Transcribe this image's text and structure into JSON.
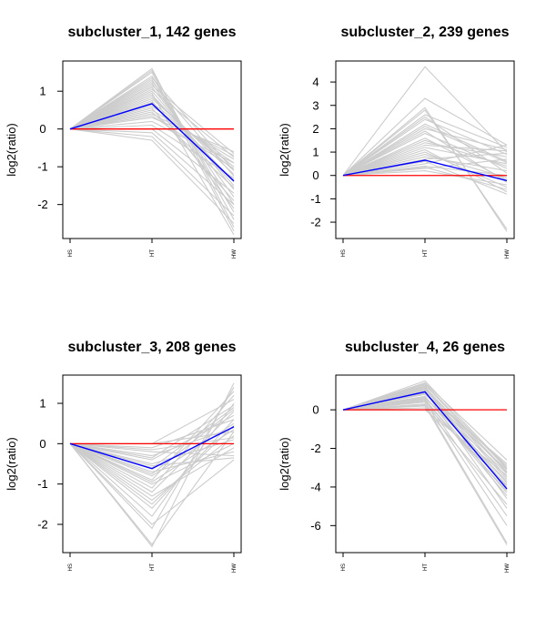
{
  "colors": {
    "profile": "#cccccc",
    "mean": "#0000ff",
    "baseline": "#ff0000",
    "axis": "#000000"
  },
  "chart_data": [
    {
      "type": "line",
      "title": "subcluster_1, 142 genes",
      "ylabel": "log2(ratio)",
      "categories": [
        "HS",
        "HT",
        "HW"
      ],
      "yticks": [
        1,
        0,
        -1,
        -2
      ],
      "ylim": [
        -2.9,
        1.8
      ],
      "series": [
        {
          "role": "mean",
          "values": [
            0,
            0.67,
            -1.38
          ]
        },
        {
          "role": "baseline",
          "values": [
            0,
            0,
            0
          ]
        },
        {
          "role": "profiles",
          "profiles": [
            [
              0,
              1.6,
              -2.6
            ],
            [
              0,
              1.55,
              -2.4
            ],
            [
              0,
              1.5,
              -2.7
            ],
            [
              0,
              1.4,
              -2.2
            ],
            [
              0,
              1.3,
              -2.0
            ],
            [
              0,
              1.2,
              -1.8
            ],
            [
              0,
              1.1,
              -1.6
            ],
            [
              0,
              1.0,
              -1.5
            ],
            [
              0,
              0.9,
              -1.4
            ],
            [
              0,
              0.85,
              -1.2
            ],
            [
              0,
              0.8,
              -1.1
            ],
            [
              0,
              0.7,
              -1.0
            ],
            [
              0,
              0.6,
              -0.9
            ],
            [
              0,
              0.5,
              -0.8
            ],
            [
              0,
              0.4,
              -0.7
            ],
            [
              0,
              0.3,
              -0.6
            ],
            [
              0,
              0.2,
              -0.9
            ],
            [
              0,
              0.1,
              -1.3
            ],
            [
              0,
              0.0,
              -1.7
            ],
            [
              0,
              -0.1,
              -2.0
            ],
            [
              0,
              -0.2,
              -2.3
            ],
            [
              0,
              -0.3,
              -2.5
            ],
            [
              0,
              1.35,
              -1.1
            ],
            [
              0,
              1.15,
              -0.65
            ],
            [
              0,
              0.95,
              -2.8
            ],
            [
              0,
              0.75,
              -2.1
            ],
            [
              0,
              0.55,
              -1.9
            ],
            [
              0,
              0.45,
              -1.55
            ],
            [
              0,
              1.25,
              -1.25
            ],
            [
              0,
              1.05,
              -0.75
            ],
            [
              0,
              0.65,
              -1.35
            ],
            [
              0,
              0.35,
              -1.05
            ]
          ]
        }
      ]
    },
    {
      "type": "line",
      "title": "subcluster_2, 239 genes",
      "ylabel": "log2(ratio)",
      "categories": [
        "HS",
        "HT",
        "HW"
      ],
      "yticks": [
        4,
        3,
        2,
        1,
        0,
        -1,
        -2
      ],
      "ylim": [
        -2.7,
        4.9
      ],
      "series": [
        {
          "role": "mean",
          "values": [
            0,
            0.65,
            -0.22
          ]
        },
        {
          "role": "baseline",
          "values": [
            0,
            0,
            0
          ]
        },
        {
          "role": "profiles",
          "profiles": [
            [
              0,
              4.65,
              1.0
            ],
            [
              0,
              3.3,
              1.3
            ],
            [
              0,
              2.9,
              -2.4
            ],
            [
              0,
              2.8,
              -2.3
            ],
            [
              0,
              2.6,
              1.2
            ],
            [
              0,
              2.4,
              0.9
            ],
            [
              0,
              2.2,
              0.6
            ],
            [
              0,
              2.0,
              1.1
            ],
            [
              0,
              1.8,
              0.3
            ],
            [
              0,
              1.6,
              -0.2
            ],
            [
              0,
              1.4,
              0.8
            ],
            [
              0,
              1.2,
              0.5
            ],
            [
              0,
              1.0,
              -0.5
            ],
            [
              0,
              0.8,
              0.2
            ],
            [
              0,
              0.6,
              -0.8
            ],
            [
              0,
              0.4,
              0.0
            ],
            [
              0,
              0.3,
              0.7
            ],
            [
              0,
              0.2,
              -0.4
            ],
            [
              0,
              0.5,
              1.3
            ],
            [
              0,
              0.9,
              -0.1
            ],
            [
              0,
              1.5,
              0.4
            ],
            [
              0,
              1.9,
              -0.3
            ],
            [
              0,
              2.5,
              0.1
            ],
            [
              0,
              0.7,
              0.95
            ],
            [
              0,
              1.1,
              -0.7
            ],
            [
              0,
              1.3,
              1.05
            ],
            [
              0,
              0.35,
              -0.6
            ],
            [
              0,
              2.1,
              0.55
            ]
          ]
        }
      ]
    },
    {
      "type": "line",
      "title": "subcluster_3, 208 genes",
      "ylabel": "log2(ratio)",
      "categories": [
        "HS",
        "HT",
        "HW"
      ],
      "yticks": [
        1,
        0,
        -1,
        -2
      ],
      "ylim": [
        -2.7,
        1.7
      ],
      "series": [
        {
          "role": "mean",
          "values": [
            0,
            -0.62,
            0.42
          ]
        },
        {
          "role": "baseline",
          "values": [
            0,
            0,
            0
          ]
        },
        {
          "role": "profiles",
          "profiles": [
            [
              0,
              -2.55,
              1.5
            ],
            [
              0,
              -2.5,
              0.3
            ],
            [
              0,
              -2.1,
              1.4
            ],
            [
              0,
              -2.0,
              -0.4
            ],
            [
              0,
              -1.8,
              1.0
            ],
            [
              0,
              -1.6,
              0.6
            ],
            [
              0,
              -1.4,
              0.2
            ],
            [
              0,
              -1.2,
              0.8
            ],
            [
              0,
              -1.0,
              0.0
            ],
            [
              0,
              -0.9,
              1.3
            ],
            [
              0,
              -0.8,
              0.5
            ],
            [
              0,
              -0.7,
              -0.2
            ],
            [
              0,
              -0.6,
              0.9
            ],
            [
              0,
              -0.5,
              0.1
            ],
            [
              0,
              -0.4,
              0.7
            ],
            [
              0,
              -0.3,
              0.4
            ],
            [
              0,
              -0.2,
              -0.3
            ],
            [
              0,
              -0.1,
              0.6
            ],
            [
              0,
              0.0,
              0.3
            ],
            [
              0,
              0.0,
              1.1
            ],
            [
              0,
              -1.3,
              -0.1
            ],
            [
              0,
              -1.1,
              1.2
            ],
            [
              0,
              -0.95,
              0.35
            ],
            [
              0,
              -0.75,
              0.85
            ],
            [
              0,
              -0.55,
              -0.35
            ],
            [
              0,
              -0.35,
              0.95
            ],
            [
              0,
              -0.15,
              0.15
            ],
            [
              0,
              -1.5,
              0.45
            ]
          ]
        }
      ]
    },
    {
      "type": "line",
      "title": "subcluster_4, 26 genes",
      "ylabel": "log2(ratio)",
      "categories": [
        "HS",
        "HT",
        "HW"
      ],
      "yticks": [
        0,
        -2,
        -4,
        -6
      ],
      "ylim": [
        -7.4,
        1.8
      ],
      "series": [
        {
          "role": "mean",
          "values": [
            0,
            0.93,
            -4.1
          ]
        },
        {
          "role": "baseline",
          "values": [
            0,
            0,
            0
          ]
        },
        {
          "role": "profiles",
          "profiles": [
            [
              0,
              1.5,
              -3.0
            ],
            [
              0,
              1.4,
              -2.6
            ],
            [
              0,
              1.3,
              -3.2
            ],
            [
              0,
              1.2,
              -3.5
            ],
            [
              0,
              1.1,
              -4.0
            ],
            [
              0,
              1.0,
              -2.9
            ],
            [
              0,
              0.9,
              -3.8
            ],
            [
              0,
              0.8,
              -3.1
            ],
            [
              0,
              0.7,
              -4.3
            ],
            [
              0,
              0.6,
              -3.3
            ],
            [
              0,
              0.5,
              -5.5
            ],
            [
              0,
              0.4,
              -6.0
            ],
            [
              0,
              0.3,
              -6.9
            ],
            [
              0,
              0.2,
              -7.0
            ],
            [
              0,
              0.1,
              -4.9
            ],
            [
              0,
              0.0,
              -3.4
            ],
            [
              0,
              1.25,
              -4.6
            ],
            [
              0,
              1.05,
              -3.6
            ],
            [
              0,
              0.85,
              -2.8
            ],
            [
              0,
              0.65,
              -3.7
            ],
            [
              0,
              0.45,
              -4.2
            ],
            [
              0,
              0.25,
              -3.9
            ],
            [
              0,
              1.35,
              -3.05
            ],
            [
              0,
              0.95,
              -5.1
            ],
            [
              0,
              0.55,
              -4.45
            ],
            [
              0,
              1.15,
              -3.25
            ]
          ]
        }
      ]
    }
  ]
}
